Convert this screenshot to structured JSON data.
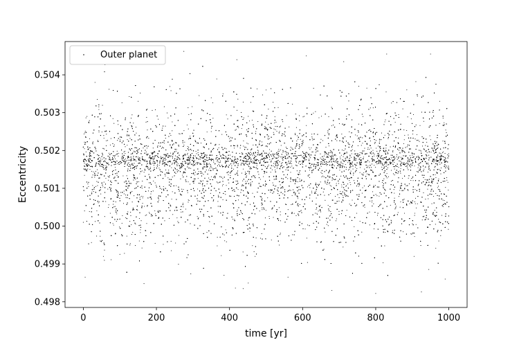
{
  "chart_data": {
    "type": "scatter",
    "title": "",
    "xlabel": "time [yr]",
    "ylabel": "Eccentricity",
    "xlim": [
      -50,
      1050
    ],
    "ylim": [
      0.49785,
      0.50488
    ],
    "x_ticks": [
      0,
      200,
      400,
      600,
      800,
      1000
    ],
    "x_tick_labels": [
      "0",
      "200",
      "400",
      "600",
      "800",
      "1000"
    ],
    "y_ticks": [
      0.498,
      0.499,
      0.5,
      0.501,
      0.502,
      0.503,
      0.504
    ],
    "y_tick_labels": [
      "0.498",
      "0.499",
      "0.500",
      "0.501",
      "0.502",
      "0.503",
      "0.504"
    ],
    "grid": false,
    "legend": {
      "position": "top-left",
      "entries": [
        "Outer planet"
      ]
    },
    "series": [
      {
        "name": "Outer planet",
        "color": "#000000",
        "marker": "dot",
        "point_count": 15000,
        "x_range": [
          0,
          1000
        ],
        "y_min": 0.49822,
        "y_max": 0.50464,
        "y_mean": 0.5014,
        "y_spread_sd": 0.0009,
        "dense_band_y": 0.50175,
        "points_sample": [
          [
            0,
            0.5001
          ],
          [
            5,
            0.49865
          ],
          [
            10,
            0.5029
          ],
          [
            18,
            0.5015
          ],
          [
            32,
            0.5038
          ],
          [
            55,
            0.4992
          ],
          [
            85,
            0.50215
          ],
          [
            110,
            0.5006
          ],
          [
            150,
            0.5033
          ],
          [
            166,
            0.49848
          ],
          [
            190,
            0.50178
          ],
          [
            240,
            0.4996
          ],
          [
            275,
            0.50462
          ],
          [
            320,
            0.5012
          ],
          [
            350,
            0.5025
          ],
          [
            385,
            0.4987
          ],
          [
            420,
            0.5044
          ],
          [
            440,
            0.5018
          ],
          [
            470,
            0.4992
          ],
          [
            500,
            0.5036
          ],
          [
            540,
            0.501
          ],
          [
            560,
            0.49865
          ],
          [
            610,
            0.5045
          ],
          [
            650,
            0.5017
          ],
          [
            680,
            0.4983
          ],
          [
            720,
            0.5029
          ],
          [
            770,
            0.5005
          ],
          [
            800,
            0.49822
          ],
          [
            830,
            0.50455
          ],
          [
            870,
            0.5016
          ],
          [
            905,
            0.4992
          ],
          [
            925,
            0.49826
          ],
          [
            950,
            0.50455
          ],
          [
            975,
            0.5033
          ],
          [
            990,
            0.4986
          ],
          [
            1000,
            0.5015
          ]
        ]
      }
    ]
  }
}
